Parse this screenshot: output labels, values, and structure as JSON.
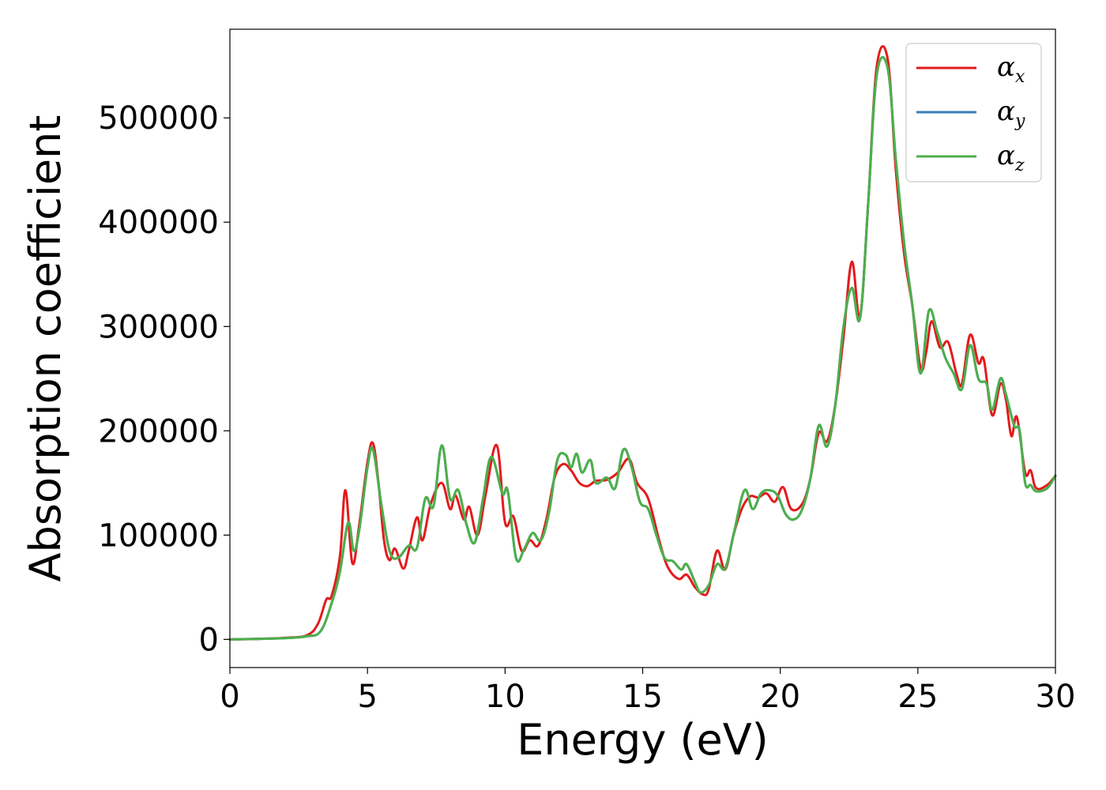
{
  "chart_data": {
    "type": "line",
    "title": "",
    "xlabel": "Energy (eV)",
    "ylabel": "Absorption coefficient",
    "xlim": [
      0,
      30
    ],
    "ylim": [
      -27000,
      585000
    ],
    "xticks": [
      0,
      5,
      10,
      15,
      20,
      25,
      30
    ],
    "yticks": [
      0,
      100000,
      200000,
      300000,
      400000,
      500000
    ],
    "grid": false,
    "legend_position": "top-right",
    "series": [
      {
        "name": "α",
        "subscript": "x",
        "color": "#e41a1c",
        "points": [
          [
            0,
            0
          ],
          [
            1,
            500
          ],
          [
            2,
            1500
          ],
          [
            2.8,
            4000
          ],
          [
            3.2,
            15000
          ],
          [
            3.5,
            38000
          ],
          [
            3.7,
            42000
          ],
          [
            4.0,
            80000
          ],
          [
            4.2,
            143000
          ],
          [
            4.45,
            73000
          ],
          [
            4.7,
            110000
          ],
          [
            5.0,
            170000
          ],
          [
            5.2,
            188000
          ],
          [
            5.4,
            150000
          ],
          [
            5.6,
            95000
          ],
          [
            5.8,
            76000
          ],
          [
            6.0,
            87000
          ],
          [
            6.3,
            68000
          ],
          [
            6.5,
            85000
          ],
          [
            6.8,
            117000
          ],
          [
            7.0,
            95000
          ],
          [
            7.3,
            130000
          ],
          [
            7.7,
            150000
          ],
          [
            8.0,
            125000
          ],
          [
            8.2,
            138000
          ],
          [
            8.5,
            115000
          ],
          [
            8.7,
            127000
          ],
          [
            9.0,
            100000
          ],
          [
            9.3,
            140000
          ],
          [
            9.7,
            186000
          ],
          [
            10.0,
            112000
          ],
          [
            10.3,
            118000
          ],
          [
            10.6,
            85000
          ],
          [
            10.9,
            95000
          ],
          [
            11.2,
            90000
          ],
          [
            11.5,
            115000
          ],
          [
            11.8,
            155000
          ],
          [
            12.1,
            168000
          ],
          [
            12.4,
            162000
          ],
          [
            12.7,
            150000
          ],
          [
            13.0,
            147000
          ],
          [
            13.3,
            152000
          ],
          [
            13.7,
            153000
          ],
          [
            14.1,
            160000
          ],
          [
            14.5,
            173000
          ],
          [
            14.8,
            150000
          ],
          [
            15.2,
            135000
          ],
          [
            15.6,
            95000
          ],
          [
            15.9,
            70000
          ],
          [
            16.3,
            58000
          ],
          [
            16.6,
            62000
          ],
          [
            16.9,
            50000
          ],
          [
            17.2,
            43000
          ],
          [
            17.4,
            48000
          ],
          [
            17.7,
            85000
          ],
          [
            18.0,
            67000
          ],
          [
            18.3,
            100000
          ],
          [
            18.6,
            125000
          ],
          [
            18.9,
            137000
          ],
          [
            19.2,
            136000
          ],
          [
            19.5,
            140000
          ],
          [
            19.8,
            132000
          ],
          [
            20.1,
            146000
          ],
          [
            20.4,
            125000
          ],
          [
            20.8,
            130000
          ],
          [
            21.1,
            155000
          ],
          [
            21.4,
            198000
          ],
          [
            21.7,
            190000
          ],
          [
            22.0,
            225000
          ],
          [
            22.3,
            290000
          ],
          [
            22.6,
            362000
          ],
          [
            22.9,
            310000
          ],
          [
            23.2,
            420000
          ],
          [
            23.5,
            548000
          ],
          [
            23.9,
            557000
          ],
          [
            24.2,
            450000
          ],
          [
            24.5,
            370000
          ],
          [
            24.8,
            320000
          ],
          [
            25.1,
            260000
          ],
          [
            25.3,
            275000
          ],
          [
            25.5,
            305000
          ],
          [
            25.8,
            280000
          ],
          [
            26.1,
            285000
          ],
          [
            26.4,
            255000
          ],
          [
            26.6,
            245000
          ],
          [
            26.9,
            292000
          ],
          [
            27.2,
            265000
          ],
          [
            27.4,
            268000
          ],
          [
            27.7,
            215000
          ],
          [
            28.0,
            245000
          ],
          [
            28.2,
            230000
          ],
          [
            28.4,
            195000
          ],
          [
            28.6,
            213000
          ],
          [
            28.9,
            160000
          ],
          [
            29.1,
            162000
          ],
          [
            29.3,
            145000
          ],
          [
            29.7,
            148000
          ],
          [
            30.0,
            157000
          ]
        ]
      },
      {
        "name": "α",
        "subscript": "y",
        "color": "#377eb8",
        "points": [
          [
            0,
            0
          ],
          [
            1,
            500
          ],
          [
            2,
            1200
          ],
          [
            2.8,
            3000
          ],
          [
            3.3,
            8000
          ],
          [
            3.7,
            35000
          ],
          [
            4.0,
            65000
          ],
          [
            4.3,
            112000
          ],
          [
            4.5,
            85000
          ],
          [
            4.7,
            105000
          ],
          [
            5.0,
            165000
          ],
          [
            5.2,
            182000
          ],
          [
            5.5,
            130000
          ],
          [
            5.8,
            85000
          ],
          [
            6.1,
            78000
          ],
          [
            6.5,
            90000
          ],
          [
            6.8,
            88000
          ],
          [
            7.1,
            135000
          ],
          [
            7.4,
            128000
          ],
          [
            7.7,
            186000
          ],
          [
            8.0,
            135000
          ],
          [
            8.3,
            143000
          ],
          [
            8.6,
            110000
          ],
          [
            8.9,
            93000
          ],
          [
            9.2,
            135000
          ],
          [
            9.5,
            175000
          ],
          [
            9.9,
            140000
          ],
          [
            10.1,
            142000
          ],
          [
            10.4,
            78000
          ],
          [
            10.7,
            87000
          ],
          [
            11.0,
            102000
          ],
          [
            11.3,
            95000
          ],
          [
            11.6,
            122000
          ],
          [
            11.9,
            172000
          ],
          [
            12.2,
            177000
          ],
          [
            12.4,
            165000
          ],
          [
            12.6,
            178000
          ],
          [
            12.8,
            160000
          ],
          [
            13.1,
            172000
          ],
          [
            13.3,
            150000
          ],
          [
            13.7,
            155000
          ],
          [
            14.0,
            145000
          ],
          [
            14.3,
            182000
          ],
          [
            14.6,
            165000
          ],
          [
            14.9,
            132000
          ],
          [
            15.2,
            125000
          ],
          [
            15.5,
            100000
          ],
          [
            15.8,
            78000
          ],
          [
            16.1,
            75000
          ],
          [
            16.4,
            67000
          ],
          [
            16.6,
            72000
          ],
          [
            16.9,
            55000
          ],
          [
            17.1,
            45000
          ],
          [
            17.4,
            52000
          ],
          [
            17.7,
            72000
          ],
          [
            18.0,
            68000
          ],
          [
            18.3,
            100000
          ],
          [
            18.7,
            143000
          ],
          [
            19.0,
            125000
          ],
          [
            19.3,
            140000
          ],
          [
            19.6,
            143000
          ],
          [
            19.9,
            138000
          ],
          [
            20.2,
            120000
          ],
          [
            20.5,
            115000
          ],
          [
            20.8,
            125000
          ],
          [
            21.1,
            155000
          ],
          [
            21.4,
            205000
          ],
          [
            21.7,
            185000
          ],
          [
            22.0,
            225000
          ],
          [
            22.3,
            300000
          ],
          [
            22.6,
            337000
          ],
          [
            22.9,
            308000
          ],
          [
            23.2,
            420000
          ],
          [
            23.5,
            540000
          ],
          [
            23.9,
            548000
          ],
          [
            24.2,
            460000
          ],
          [
            24.5,
            380000
          ],
          [
            24.8,
            320000
          ],
          [
            25.1,
            255000
          ],
          [
            25.4,
            315000
          ],
          [
            25.7,
            295000
          ],
          [
            26.0,
            270000
          ],
          [
            26.3,
            255000
          ],
          [
            26.6,
            240000
          ],
          [
            26.9,
            282000
          ],
          [
            27.2,
            250000
          ],
          [
            27.5,
            245000
          ],
          [
            27.7,
            220000
          ],
          [
            28.0,
            250000
          ],
          [
            28.2,
            235000
          ],
          [
            28.5,
            205000
          ],
          [
            28.7,
            200000
          ],
          [
            28.9,
            150000
          ],
          [
            29.1,
            148000
          ],
          [
            29.3,
            142000
          ],
          [
            29.7,
            145000
          ],
          [
            30.0,
            157000
          ]
        ]
      },
      {
        "name": "α",
        "subscript": "z",
        "color": "#4daf4a",
        "points": [
          [
            0,
            0
          ],
          [
            1,
            500
          ],
          [
            2,
            1200
          ],
          [
            2.8,
            3000
          ],
          [
            3.3,
            8000
          ],
          [
            3.7,
            35000
          ],
          [
            4.0,
            65000
          ],
          [
            4.3,
            112000
          ],
          [
            4.5,
            85000
          ],
          [
            4.7,
            105000
          ],
          [
            5.0,
            165000
          ],
          [
            5.2,
            182000
          ],
          [
            5.5,
            130000
          ],
          [
            5.8,
            85000
          ],
          [
            6.1,
            78000
          ],
          [
            6.5,
            90000
          ],
          [
            6.8,
            88000
          ],
          [
            7.1,
            135000
          ],
          [
            7.4,
            128000
          ],
          [
            7.7,
            186000
          ],
          [
            8.0,
            135000
          ],
          [
            8.3,
            143000
          ],
          [
            8.6,
            110000
          ],
          [
            8.9,
            93000
          ],
          [
            9.2,
            135000
          ],
          [
            9.5,
            175000
          ],
          [
            9.9,
            140000
          ],
          [
            10.1,
            142000
          ],
          [
            10.4,
            78000
          ],
          [
            10.7,
            87000
          ],
          [
            11.0,
            102000
          ],
          [
            11.3,
            95000
          ],
          [
            11.6,
            122000
          ],
          [
            11.9,
            172000
          ],
          [
            12.2,
            177000
          ],
          [
            12.4,
            165000
          ],
          [
            12.6,
            178000
          ],
          [
            12.8,
            160000
          ],
          [
            13.1,
            172000
          ],
          [
            13.3,
            150000
          ],
          [
            13.7,
            155000
          ],
          [
            14.0,
            145000
          ],
          [
            14.3,
            182000
          ],
          [
            14.6,
            165000
          ],
          [
            14.9,
            132000
          ],
          [
            15.2,
            125000
          ],
          [
            15.5,
            100000
          ],
          [
            15.8,
            78000
          ],
          [
            16.1,
            75000
          ],
          [
            16.4,
            67000
          ],
          [
            16.6,
            72000
          ],
          [
            16.9,
            55000
          ],
          [
            17.1,
            45000
          ],
          [
            17.4,
            52000
          ],
          [
            17.7,
            72000
          ],
          [
            18.0,
            68000
          ],
          [
            18.3,
            100000
          ],
          [
            18.7,
            143000
          ],
          [
            19.0,
            125000
          ],
          [
            19.3,
            140000
          ],
          [
            19.6,
            143000
          ],
          [
            19.9,
            138000
          ],
          [
            20.2,
            120000
          ],
          [
            20.5,
            115000
          ],
          [
            20.8,
            125000
          ],
          [
            21.1,
            155000
          ],
          [
            21.4,
            205000
          ],
          [
            21.7,
            185000
          ],
          [
            22.0,
            225000
          ],
          [
            22.3,
            300000
          ],
          [
            22.6,
            337000
          ],
          [
            22.9,
            308000
          ],
          [
            23.2,
            420000
          ],
          [
            23.5,
            540000
          ],
          [
            23.9,
            548000
          ],
          [
            24.2,
            460000
          ],
          [
            24.5,
            380000
          ],
          [
            24.8,
            320000
          ],
          [
            25.1,
            255000
          ],
          [
            25.4,
            315000
          ],
          [
            25.7,
            295000
          ],
          [
            26.0,
            270000
          ],
          [
            26.3,
            255000
          ],
          [
            26.6,
            240000
          ],
          [
            26.9,
            282000
          ],
          [
            27.2,
            250000
          ],
          [
            27.5,
            245000
          ],
          [
            27.7,
            220000
          ],
          [
            28.0,
            250000
          ],
          [
            28.2,
            235000
          ],
          [
            28.5,
            205000
          ],
          [
            28.7,
            200000
          ],
          [
            28.9,
            150000
          ],
          [
            29.1,
            148000
          ],
          [
            29.3,
            142000
          ],
          [
            29.7,
            145000
          ],
          [
            30.0,
            157000
          ]
        ]
      }
    ]
  }
}
